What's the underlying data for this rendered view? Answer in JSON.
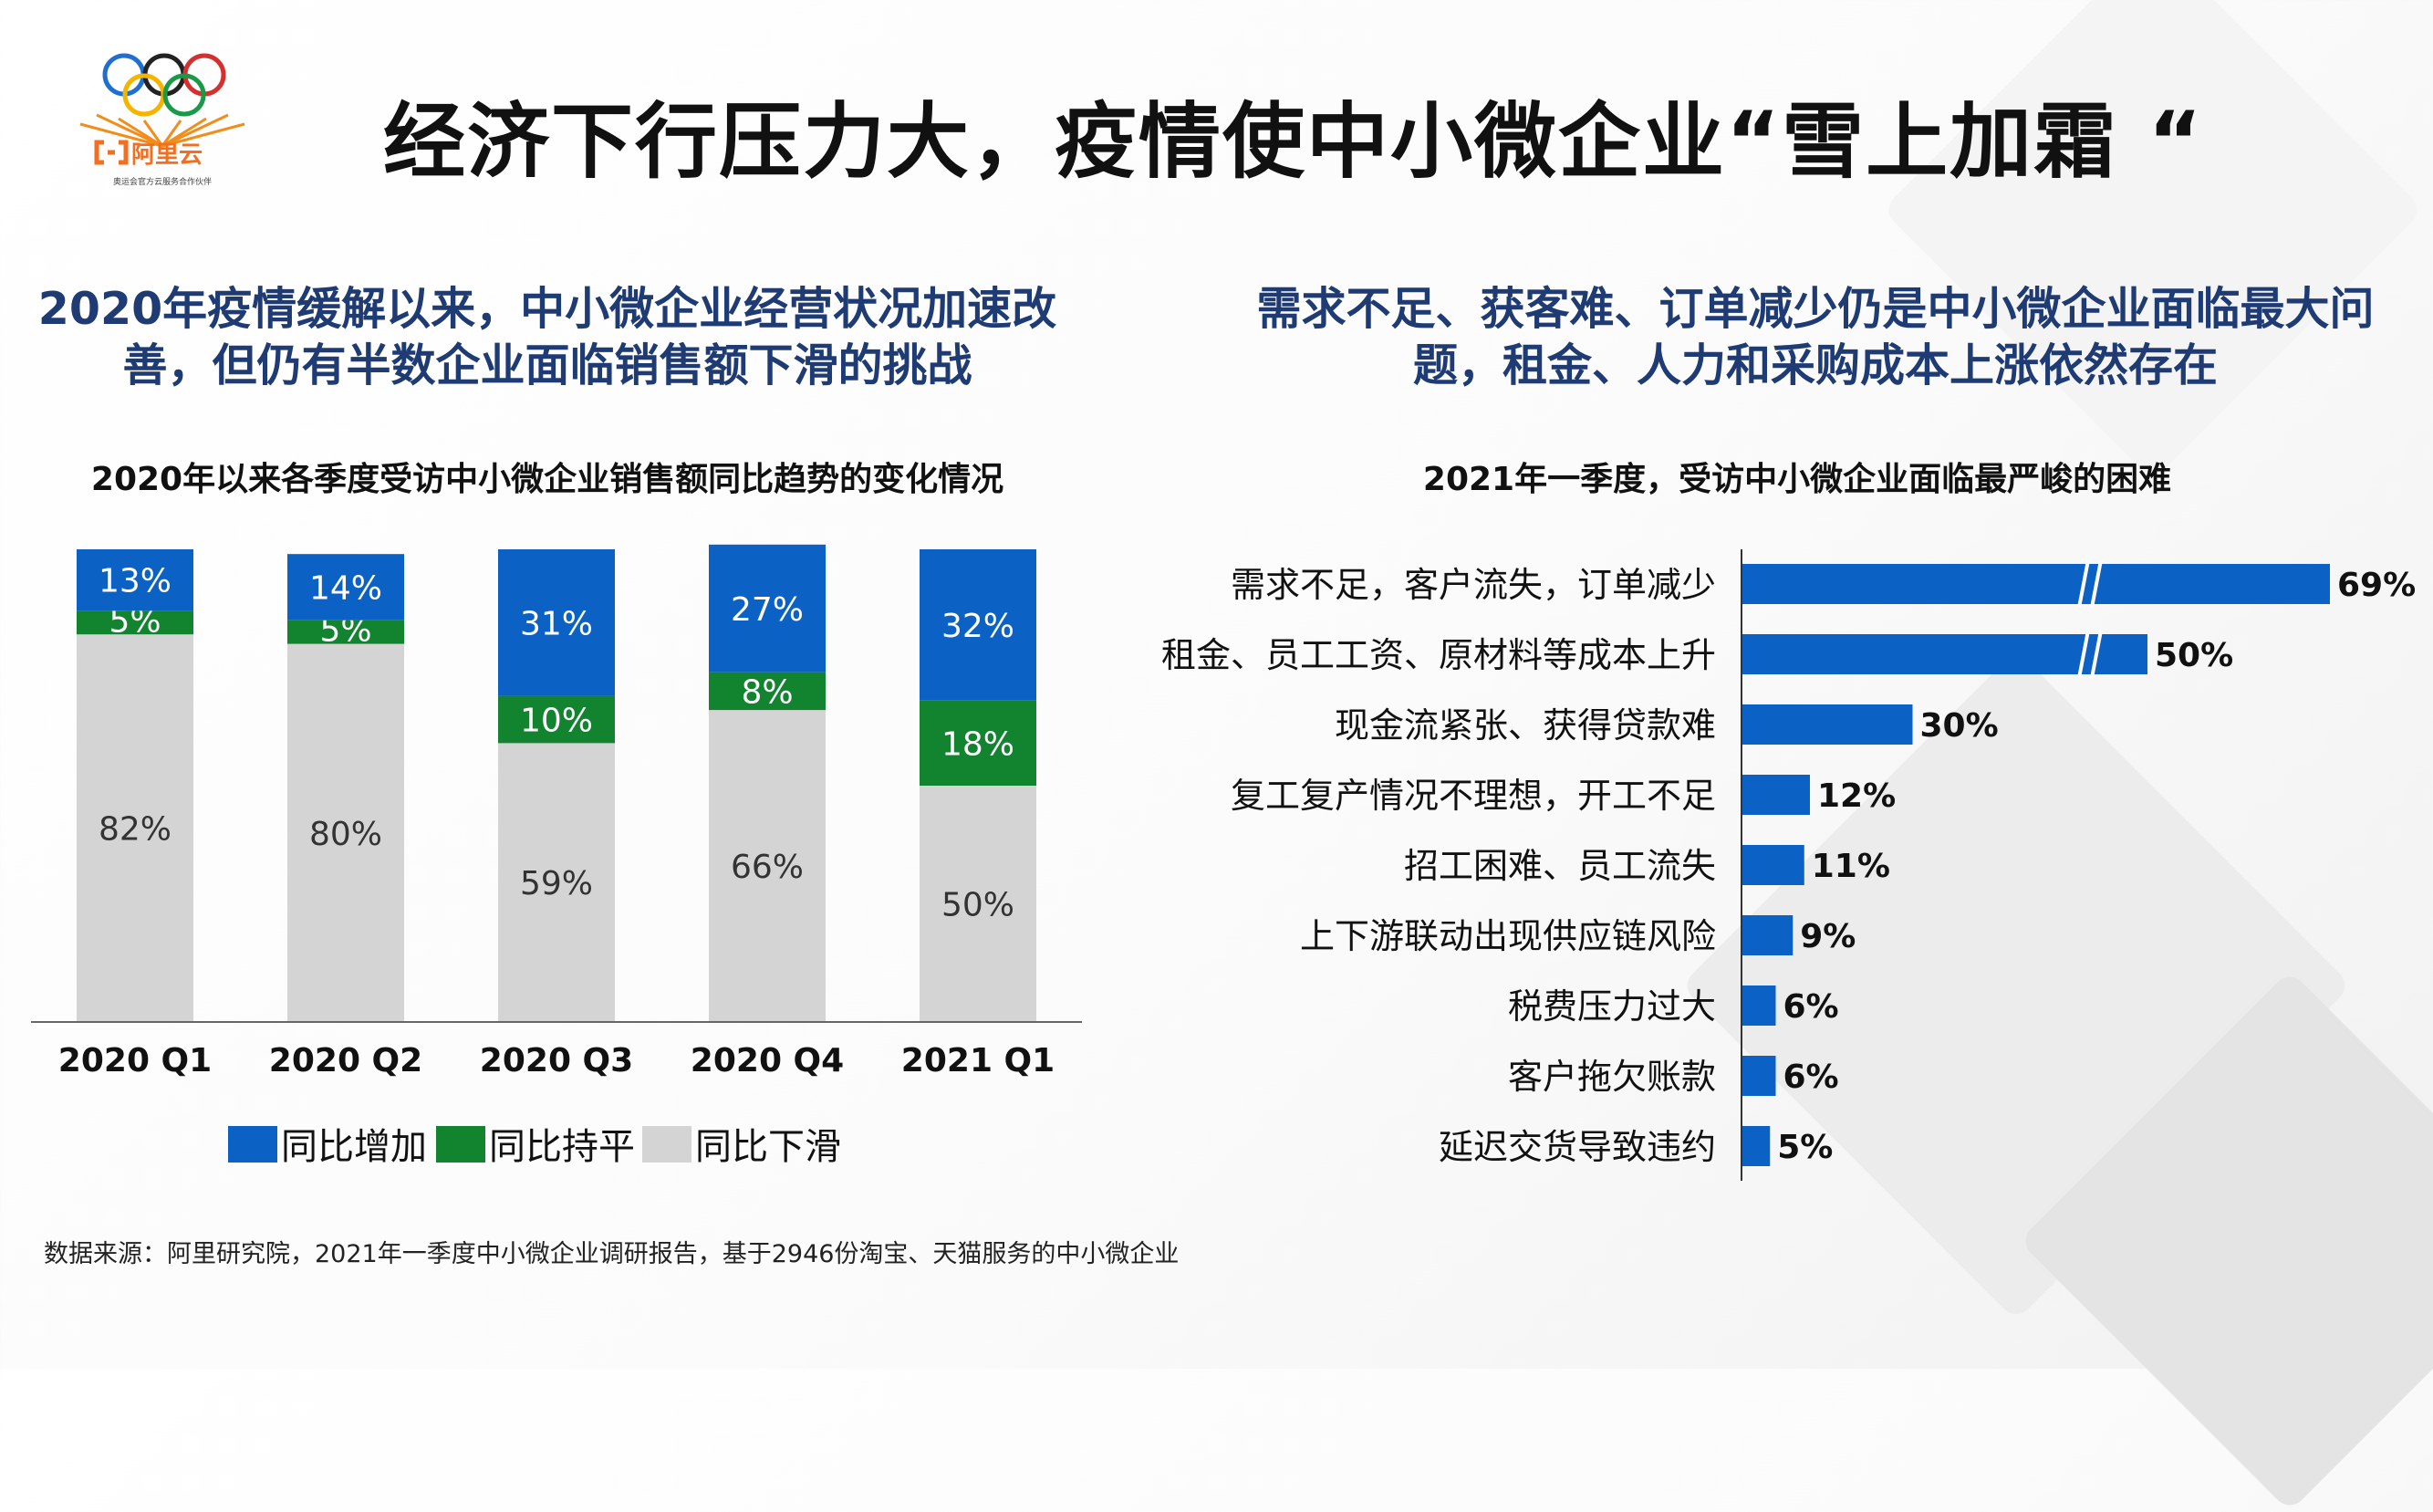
{
  "logo": {
    "brand": "阿里云",
    "tagline": "奥运会官方云服务合作伙伴"
  },
  "title": "经济下行压力大，疫情使中小微企业“雪上加霜 “",
  "left": {
    "headline_line1": "2020年疫情缓解以来，中小微企业经营状况加速改",
    "headline_line2": "善，但仍有半数企业面临销售额下滑的挑战"
  },
  "right": {
    "headline_line1": "需求不足、获客难、订单减少仍是中小微企业面临最大问",
    "headline_line2": "题，租金、人力和采购成本上涨依然存在"
  },
  "source": "数据来源：阿里研究院，2021年一季度中小微企业调研报告，基于2946份淘宝、天猫服务的中小微企业",
  "chart_data": [
    {
      "type": "bar",
      "stacked": true,
      "title": "2020年以来各季度受访中小微企业销售额同比趋势的变化情况",
      "categories": [
        "2020 Q1",
        "2020 Q2",
        "2020 Q3",
        "2020 Q4",
        "2021 Q1"
      ],
      "series": [
        {
          "name": "同比下滑",
          "values": [
            82,
            80,
            59,
            66,
            50
          ],
          "labels": [
            "82%",
            "80%",
            "59%",
            "66%",
            "50%"
          ],
          "color": "#d4d4d4",
          "label_color": "#333333"
        },
        {
          "name": "同比持平",
          "values": [
            5,
            5,
            10,
            8,
            18
          ],
          "labels": [
            "5%",
            "5%",
            "10%",
            "8%",
            "18%"
          ],
          "color": "#12832f",
          "label_color": "#ffffff"
        },
        {
          "name": "同比增加",
          "values": [
            13,
            14,
            31,
            27,
            32
          ],
          "labels": [
            "13%",
            "14%",
            "31%",
            "27%",
            "32%"
          ],
          "color": "#0b62c4",
          "label_color": "#ffffff"
        }
      ],
      "legend": [
        {
          "name": "同比增加",
          "color": "#0b62c4"
        },
        {
          "name": "同比持平",
          "color": "#12832f"
        },
        {
          "name": "同比下滑",
          "color": "#d4d4d4"
        }
      ],
      "ylim": [
        0,
        100
      ],
      "legend_position": "bottom"
    },
    {
      "type": "bar",
      "orientation": "horizontal",
      "title": "2021年一季度，受访中小微企业面临最严峻的困难",
      "categories": [
        "需求不足，客户流失，订单减少",
        "租金、员工工资、原材料等成本上升",
        "现金流紧张、获得贷款难",
        "复工复产情况不理想，开工不足",
        "招工困难、员工流失",
        "上下游联动出现供应链风险",
        "税费压力过大",
        "客户拖欠账款",
        "延迟交货导致违约"
      ],
      "values": [
        69,
        50,
        30,
        12,
        11,
        9,
        6,
        6,
        5
      ],
      "labels": [
        "69%",
        "50%",
        "30%",
        "12%",
        "11%",
        "9%",
        "6%",
        "6%",
        "5%"
      ],
      "axis_break": [
        true,
        true,
        false,
        false,
        false,
        false,
        false,
        false,
        false
      ],
      "color": "#0b62c4"
    }
  ]
}
